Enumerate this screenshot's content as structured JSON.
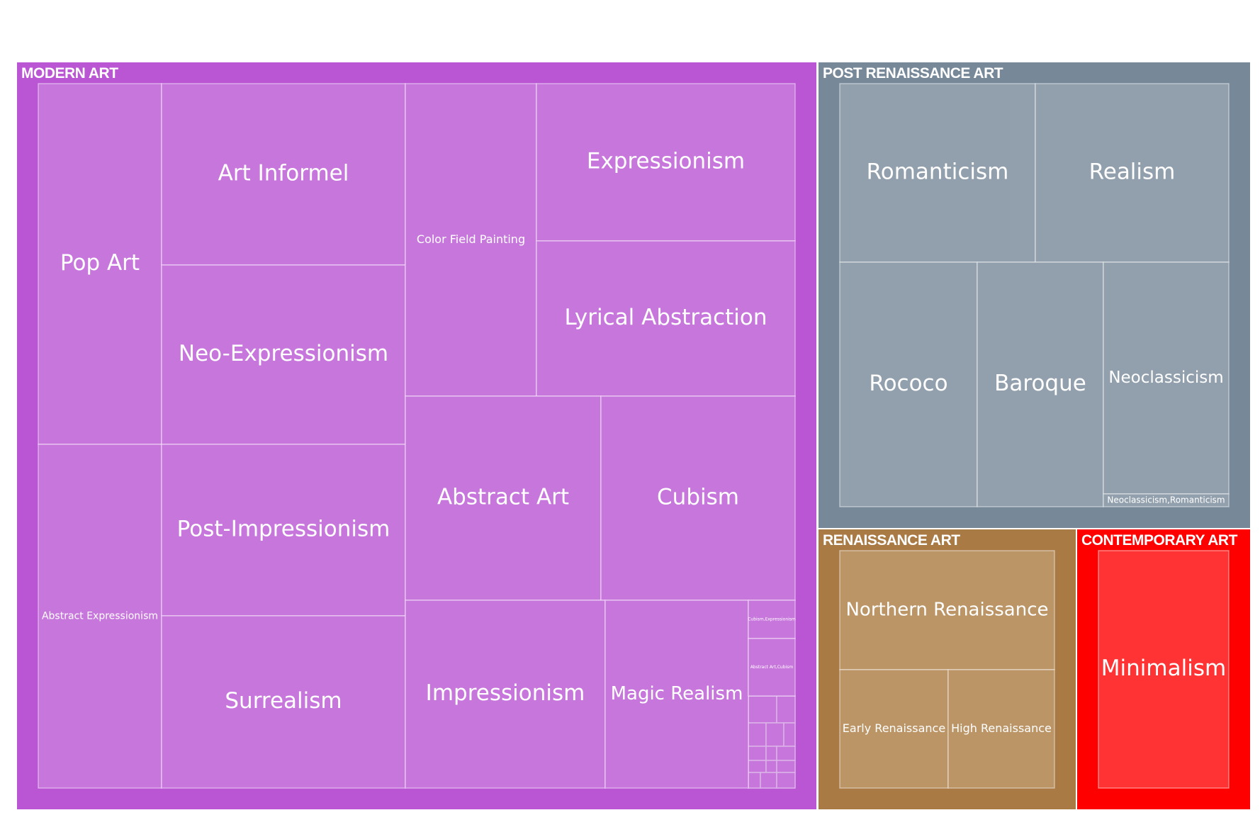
{
  "chart_data": {
    "type": "treemap",
    "title": "",
    "groups": [
      {
        "name": "MODERN ART",
        "color": "#ba55d3",
        "leaf_color": "#c777dc",
        "children": [
          {
            "name": "Pop Art",
            "value": 17
          },
          {
            "name": "Abstract Expressionism",
            "value": 16
          },
          {
            "name": "Art Informel",
            "value": 17
          },
          {
            "name": "Neo-Expressionism",
            "value": 17
          },
          {
            "name": "Post-Impressionism",
            "value": 16
          },
          {
            "name": "Surrealism",
            "value": 16
          },
          {
            "name": "Color Field Painting",
            "value": 12
          },
          {
            "name": "Expressionism",
            "value": 12
          },
          {
            "name": "Lyrical Abstraction",
            "value": 12
          },
          {
            "name": "Abstract Art",
            "value": 12
          },
          {
            "name": "Cubism",
            "value": 12
          },
          {
            "name": "Impressionism",
            "value": 11
          },
          {
            "name": "Magic Realism",
            "value": 8
          },
          {
            "name": "Cubism,Expressionism",
            "value": 1
          },
          {
            "name": "Abstract Art,Cubism",
            "value": 1
          }
        ]
      },
      {
        "name": "POST RENAISSANCE ART",
        "color": "#778899",
        "leaf_color": "#92a0ad",
        "children": [
          {
            "name": "Romanticism",
            "value": 10
          },
          {
            "name": "Realism",
            "value": 10
          },
          {
            "name": "Rococo",
            "value": 9
          },
          {
            "name": "Baroque",
            "value": 8
          },
          {
            "name": "Neoclassicism",
            "value": 8
          },
          {
            "name": "Neoclassicism,Romanticism",
            "value": 0.3
          }
        ]
      },
      {
        "name": "RENAISSANCE ART",
        "color": "#a97a43",
        "leaf_color": "#bb9566",
        "children": [
          {
            "name": "Northern Renaissance",
            "value": 8
          },
          {
            "name": "Early Renaissance",
            "value": 4
          },
          {
            "name": "High Renaissance",
            "value": 4
          }
        ]
      },
      {
        "name": "CONTEMPORARY ART",
        "color": "#ff0000",
        "leaf_color": "#ff3333",
        "children": [
          {
            "name": "Minimalism",
            "value": 10
          }
        ]
      }
    ]
  }
}
